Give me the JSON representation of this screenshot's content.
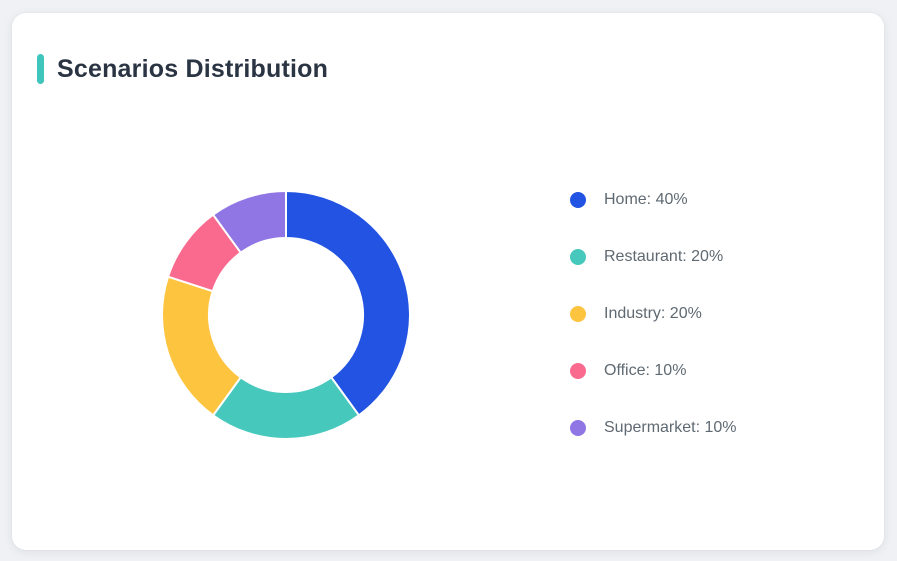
{
  "card": {
    "title": "Scenarios Distribution",
    "accent_color": "#3ec6bd"
  },
  "chart_data": {
    "type": "pie",
    "subtype": "donut",
    "title": "Scenarios Distribution",
    "categories": [
      "Home",
      "Restaurant",
      "Industry",
      "Office",
      "Supermarket"
    ],
    "values": [
      40,
      20,
      20,
      10,
      10
    ],
    "unit": "%",
    "colors": [
      "#2253e2",
      "#46c8bc",
      "#fdc440",
      "#fa6a8e",
      "#9076e4"
    ],
    "legend_labels": [
      "Home: 40%",
      "Restaurant: 20%",
      "Industry: 20%",
      "Office: 10%",
      "Supermarket: 10%"
    ],
    "legend_position": "right",
    "start_angle_deg": -90,
    "direction": "clockwise",
    "inner_radius_ratio": 0.62,
    "separator_color": "#ffffff"
  }
}
